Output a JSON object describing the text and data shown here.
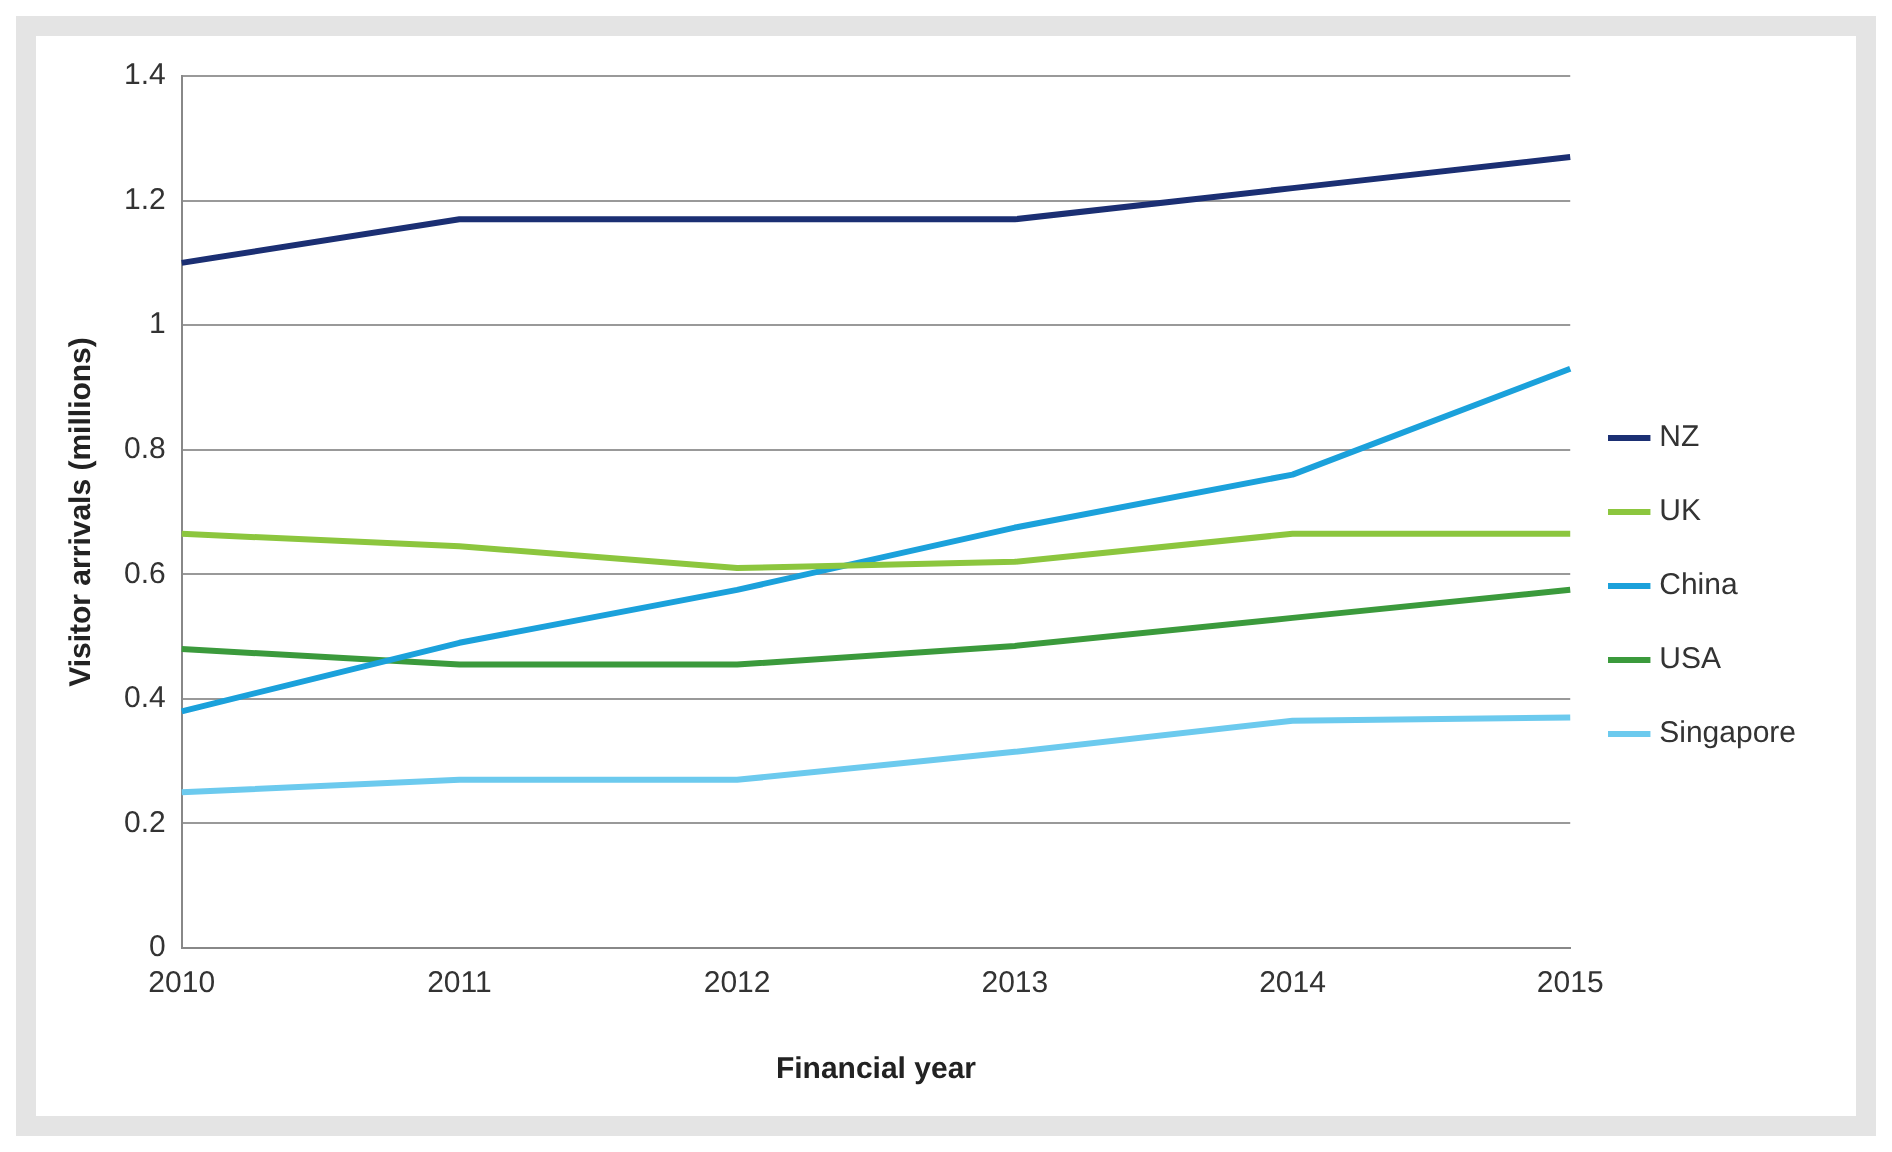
{
  "chart_data": {
    "type": "line",
    "xlabel": "Financial year",
    "ylabel": "Visitor arrivals (millions)",
    "categories": [
      "2010",
      "2011",
      "2012",
      "2013",
      "2014",
      "2015"
    ],
    "series": [
      {
        "name": "NZ",
        "color": "#1b2f73",
        "values": [
          1.1,
          1.17,
          1.17,
          1.17,
          1.22,
          1.27
        ]
      },
      {
        "name": "UK",
        "color": "#8cc63e",
        "values": [
          0.665,
          0.645,
          0.61,
          0.62,
          0.665,
          0.665
        ]
      },
      {
        "name": "China",
        "color": "#1ba1db",
        "values": [
          0.38,
          0.49,
          0.575,
          0.675,
          0.76,
          0.93
        ]
      },
      {
        "name": "USA",
        "color": "#3b9a3c",
        "values": [
          0.48,
          0.455,
          0.455,
          0.485,
          0.53,
          0.575
        ]
      },
      {
        "name": "Singapore",
        "color": "#6ccaee",
        "values": [
          0.25,
          0.27,
          0.27,
          0.315,
          0.365,
          0.37
        ]
      }
    ],
    "ylim": [
      0,
      1.4
    ],
    "yticks": [
      0,
      0.2,
      0.4,
      0.6,
      0.8,
      1,
      1.2,
      1.4
    ],
    "grid": "y",
    "legend": "right",
    "marker": "none",
    "line_style": "solid"
  }
}
